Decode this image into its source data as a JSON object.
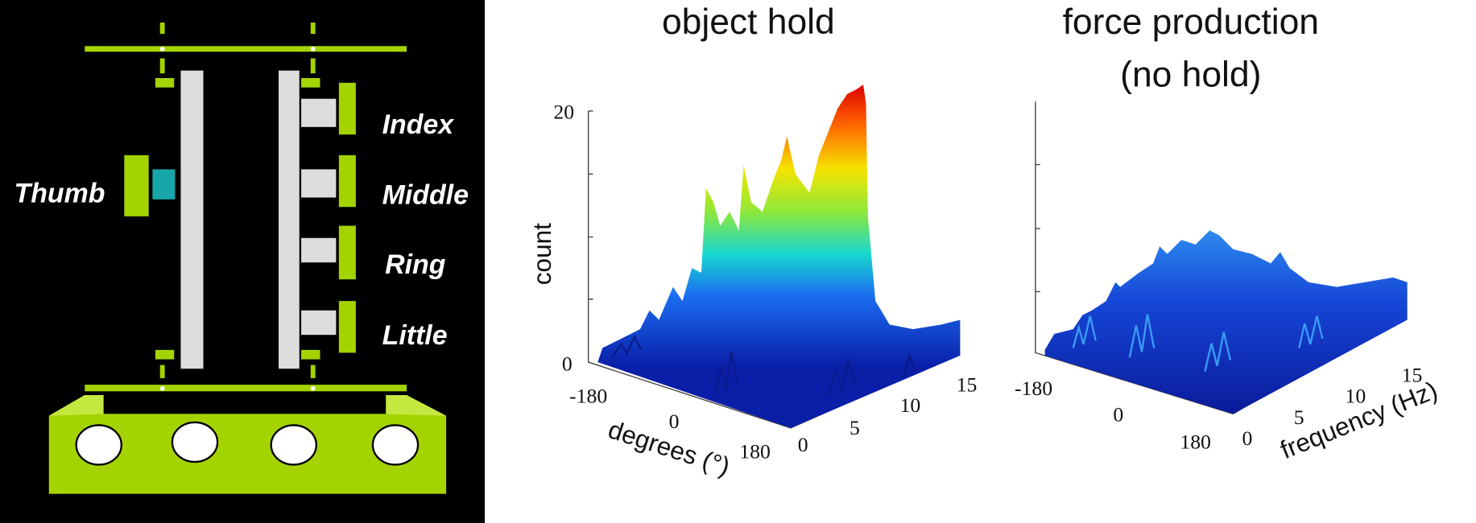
{
  "diagram": {
    "labels": [
      "Thumb",
      "Index",
      "Middle",
      "Ring",
      "Little"
    ]
  },
  "panels": [
    {
      "title": [
        "object hold"
      ],
      "y_label": "count",
      "y_ticks": [
        "20",
        "0"
      ],
      "x_label": "degrees (°)",
      "x_ticks": [
        "-180",
        "0",
        "180"
      ],
      "z_ticks": [
        "0",
        "5",
        "10",
        "15"
      ]
    },
    {
      "title": [
        "force production",
        "(no hold)"
      ],
      "x_ticks": [
        "-180",
        "0",
        "180"
      ],
      "z_ticks": [
        "0",
        "5",
        "10",
        "15"
      ],
      "z_label": "frequency (Hz)"
    }
  ]
}
